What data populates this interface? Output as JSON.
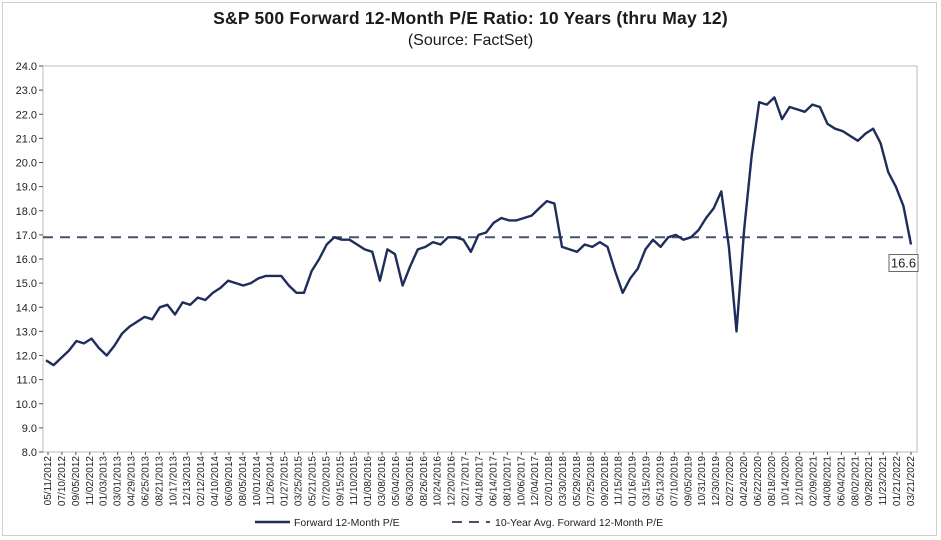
{
  "title": "S&P 500 Forward 12-Month P/E Ratio: 10 Years (thru May 12)",
  "subtitle": "(Source: FactSet)",
  "chart_data": {
    "type": "line",
    "ylim": [
      8.0,
      24.0
    ],
    "y_ticks": [
      "8.0",
      "9.0",
      "10.0",
      "11.0",
      "12.0",
      "13.0",
      "14.0",
      "15.0",
      "16.0",
      "17.0",
      "18.0",
      "19.0",
      "20.0",
      "21.0",
      "22.0",
      "23.0",
      "24.0"
    ],
    "x_tick_labels": [
      "05/11/2012",
      "07/10/2012",
      "09/05/2012",
      "11/02/2012",
      "01/03/2013",
      "03/01/2013",
      "04/29/2013",
      "06/25/2013",
      "08/21/2013",
      "10/17/2013",
      "12/13/2013",
      "02/12/2014",
      "04/10/2014",
      "06/09/2014",
      "08/05/2014",
      "10/01/2014",
      "11/26/2014",
      "01/27/2015",
      "03/25/2015",
      "05/21/2015",
      "07/20/2015",
      "09/15/2015",
      "11/10/2015",
      "01/08/2016",
      "03/08/2016",
      "05/04/2016",
      "06/30/2016",
      "08/26/2016",
      "10/24/2016",
      "12/20/2016",
      "02/17/2017",
      "04/18/2017",
      "06/14/2017",
      "08/10/2017",
      "10/06/2017",
      "12/04/2017",
      "02/01/2018",
      "03/30/2018",
      "05/29/2018",
      "07/25/2018",
      "09/20/2018",
      "11/15/2018",
      "01/16/2019",
      "03/15/2019",
      "05/13/2019",
      "07/10/2019",
      "09/05/2019",
      "10/31/2019",
      "12/30/2019",
      "02/27/2020",
      "04/24/2020",
      "06/22/2020",
      "08/18/2020",
      "10/14/2020",
      "12/10/2020",
      "02/09/2021",
      "04/08/2021",
      "06/04/2021",
      "08/02/2021",
      "09/28/2021",
      "11/23/2021",
      "01/21/2022",
      "03/21/2022"
    ],
    "series": [
      {
        "name": "Forward 12-Month P/E",
        "color": "#1f2d5a",
        "style": "solid",
        "values": [
          11.8,
          11.6,
          11.9,
          12.2,
          12.6,
          12.5,
          12.7,
          12.3,
          12.0,
          12.4,
          12.9,
          13.2,
          13.4,
          13.6,
          13.5,
          14.0,
          14.1,
          13.7,
          14.2,
          14.1,
          14.4,
          14.3,
          14.6,
          14.8,
          15.1,
          15.0,
          14.9,
          15.0,
          15.2,
          15.3,
          15.3,
          15.3,
          14.9,
          14.6,
          14.6,
          15.5,
          16.0,
          16.6,
          16.9,
          16.8,
          16.8,
          16.6,
          16.4,
          16.3,
          15.1,
          16.4,
          16.2,
          14.9,
          15.7,
          16.4,
          16.5,
          16.7,
          16.6,
          16.9,
          16.9,
          16.8,
          16.3,
          17.0,
          17.1,
          17.5,
          17.7,
          17.6,
          17.6,
          17.7,
          17.8,
          18.1,
          18.4,
          18.3,
          16.5,
          16.4,
          16.3,
          16.6,
          16.5,
          16.7,
          16.5,
          15.5,
          14.6,
          15.2,
          15.6,
          16.4,
          16.8,
          16.5,
          16.9,
          17.0,
          16.8,
          16.9,
          17.2,
          17.7,
          18.1,
          18.8,
          16.5,
          13.0,
          17.2,
          20.3,
          22.5,
          22.4,
          22.7,
          21.8,
          22.3,
          22.2,
          22.1,
          22.4,
          22.3,
          21.6,
          21.4,
          21.3,
          21.1,
          20.9,
          21.2,
          21.4,
          20.8,
          19.6,
          19.0,
          18.2,
          16.6
        ]
      },
      {
        "name": "10-Year Avg. Forward 12-Month P/E",
        "color": "#44546a",
        "style": "dashed",
        "values": [
          16.9
        ]
      }
    ],
    "annotations": [
      "16.6"
    ],
    "grid": false,
    "legend": "bottom-center"
  }
}
